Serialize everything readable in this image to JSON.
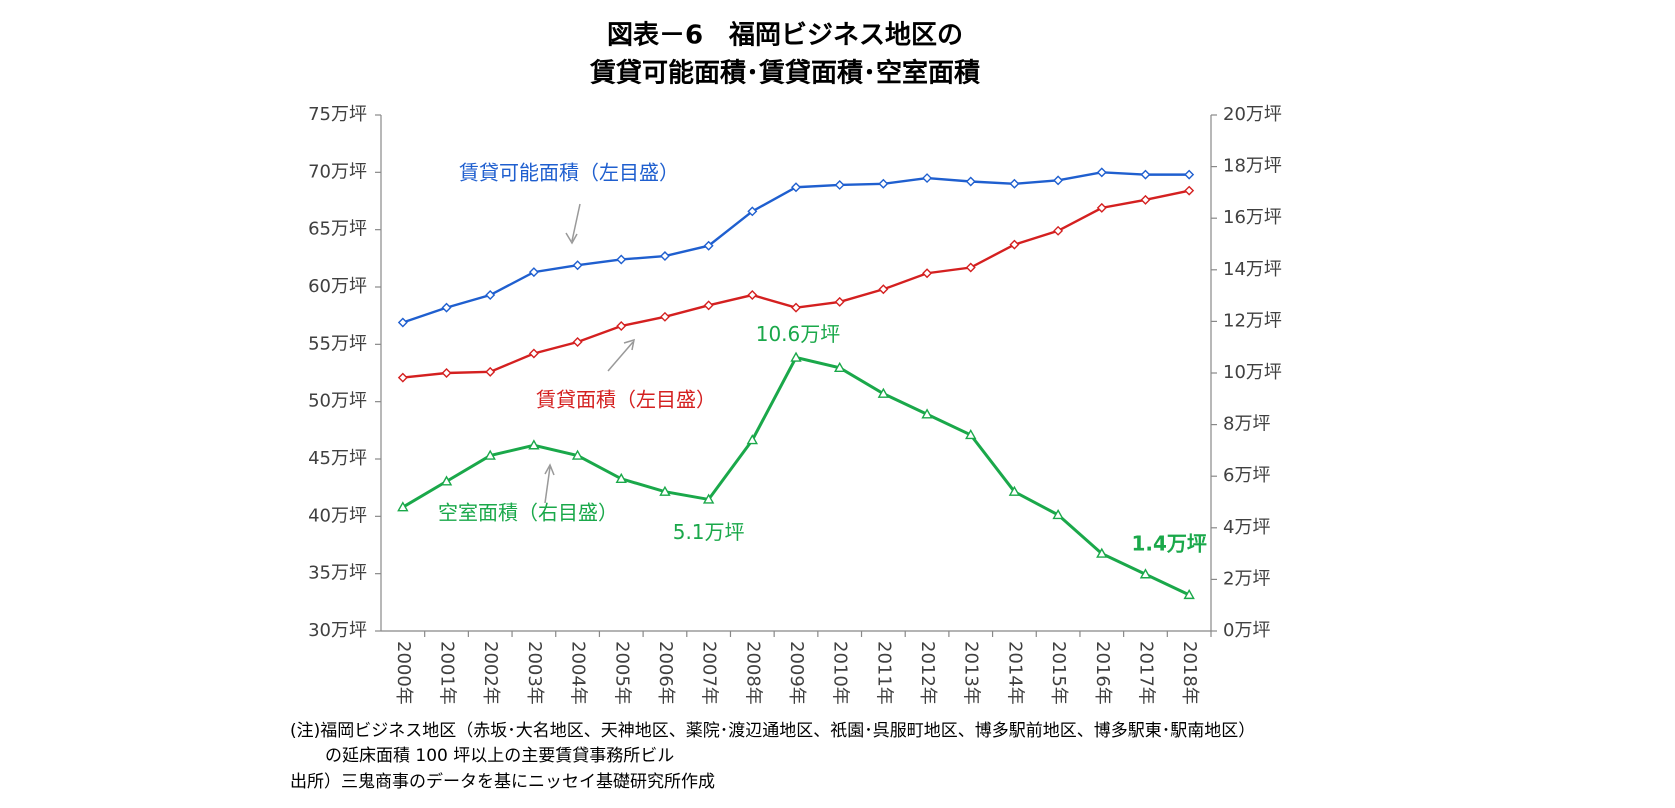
{
  "chart_data": {
    "type": "line",
    "title": [
      "図表－6　福岡ビジネス地区の",
      "賃貸可能面積･賃貸面積･空室面積"
    ],
    "categories": [
      "2000年",
      "2001年",
      "2002年",
      "2003年",
      "2004年",
      "2005年",
      "2006年",
      "2007年",
      "2008年",
      "2009年",
      "2010年",
      "2011年",
      "2012年",
      "2013年",
      "2014年",
      "2015年",
      "2016年",
      "2017年",
      "2018年"
    ],
    "series": [
      {
        "name": "賃貸可能面積（左目盛）",
        "color": "#1f5fcf",
        "marker": "diamond",
        "values": [
          56.9,
          58.2,
          59.3,
          61.3,
          61.9,
          62.4,
          62.7,
          63.6,
          66.6,
          68.7,
          68.9,
          69.0,
          69.5,
          69.2,
          69.0,
          69.3,
          70.0,
          69.8,
          69.8
        ]
      },
      {
        "name": "賃貸面積（左目盛）",
        "color": "#d42020",
        "marker": "diamond",
        "values": [
          52.1,
          52.5,
          52.6,
          54.2,
          55.2,
          56.6,
          57.4,
          58.4,
          59.3,
          58.2,
          58.7,
          59.8,
          61.2,
          61.7,
          63.7,
          64.9,
          66.9,
          67.6,
          68.4
        ]
      },
      {
        "name": "空室面積（右目盛）",
        "color": "#1aa84a",
        "marker": "triangle",
        "axis": "y2",
        "values": [
          4.8,
          5.8,
          6.8,
          7.2,
          6.8,
          5.9,
          5.4,
          5.1,
          7.4,
          10.6,
          10.2,
          9.2,
          8.4,
          7.6,
          5.4,
          4.5,
          3.0,
          2.2,
          1.4
        ],
        "value_labels": [
          null,
          null,
          null,
          null,
          null,
          null,
          null,
          "5.1万坪",
          null,
          "10.6万坪",
          null,
          null,
          null,
          null,
          null,
          null,
          null,
          null,
          "1.4万坪"
        ]
      }
    ],
    "ylim": [
      30,
      75
    ],
    "yticks": [
      {
        "value": 30,
        "label": "30万坪"
      },
      {
        "value": 35,
        "label": "35万坪"
      },
      {
        "value": 40,
        "label": "40万坪"
      },
      {
        "value": 45,
        "label": "45万坪"
      },
      {
        "value": 50,
        "label": "50万坪"
      },
      {
        "value": 55,
        "label": "55万坪"
      },
      {
        "value": 60,
        "label": "60万坪"
      },
      {
        "value": 65,
        "label": "65万坪"
      },
      {
        "value": 70,
        "label": "70万坪"
      },
      {
        "value": 75,
        "label": "75万坪"
      }
    ],
    "y2lim": [
      0,
      20
    ],
    "y2ticks": [
      {
        "value": 0,
        "label": "0万坪"
      },
      {
        "value": 2,
        "label": "2万坪"
      },
      {
        "value": 4,
        "label": "4万坪"
      },
      {
        "value": 6,
        "label": "6万坪"
      },
      {
        "value": 8,
        "label": "8万坪"
      },
      {
        "value": 10,
        "label": "10万坪"
      },
      {
        "value": 12,
        "label": "12万坪"
      },
      {
        "value": 14,
        "label": "14万坪"
      },
      {
        "value": 16,
        "label": "16万坪"
      },
      {
        "value": 18,
        "label": "18万坪"
      },
      {
        "value": 20,
        "label": "20万坪"
      }
    ],
    "grid": false,
    "notes": [
      "(注)福岡ビジネス地区（赤坂･大名地区、天神地区、薬院･渡辺通地区、祇園･呉服町地区、博多駅前地区、博多駅東･駅南地区）",
      "の延床面積 100 坪以上の主要賃貸事務所ビル",
      "出所）三鬼商事のデータを基にニッセイ基礎研究所作成"
    ]
  }
}
